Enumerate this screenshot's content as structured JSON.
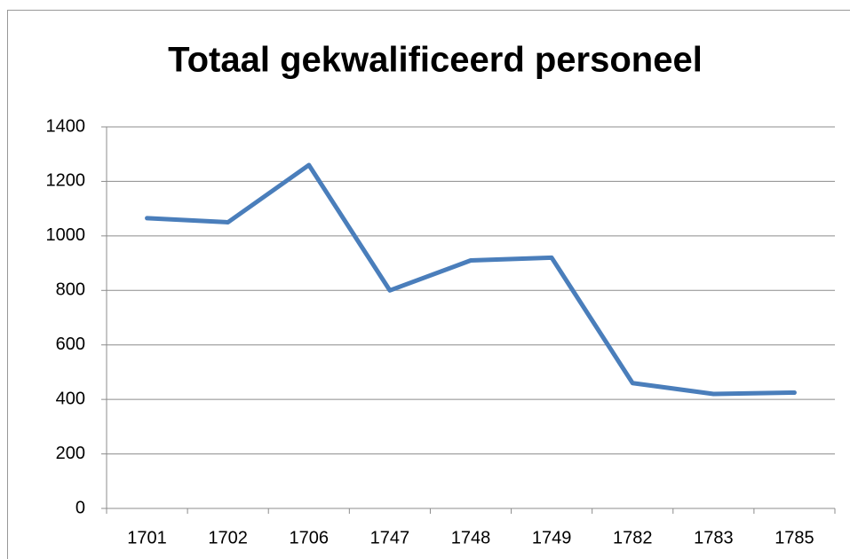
{
  "chart_data": {
    "type": "line",
    "title": "Totaal gekwalificeerd personeel",
    "categories": [
      "1701",
      "1702",
      "1706",
      "1747",
      "1748",
      "1749",
      "1782",
      "1783",
      "1785"
    ],
    "values": [
      1065,
      1050,
      1260,
      800,
      910,
      920,
      460,
      420,
      425
    ],
    "color": "#4a7ebb",
    "ylim": [
      0,
      1400
    ],
    "yticks": [
      0,
      200,
      400,
      600,
      800,
      1000,
      1200,
      1400
    ],
    "grid": true
  }
}
